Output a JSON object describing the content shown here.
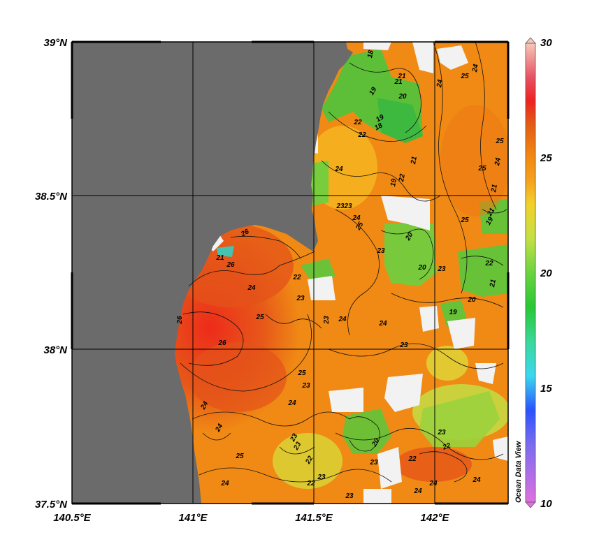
{
  "lat_labels": [
    "39°N",
    "38.5°N",
    "38°N",
    "37.5°N"
  ],
  "lon_labels": [
    "140.5°E",
    "141°E",
    "141.5°E",
    "142°E"
  ],
  "colorbar": {
    "ticks": [
      "30",
      "25",
      "20",
      "15",
      "10"
    ],
    "stops": [
      {
        "v": 10,
        "c": "#e070e0"
      },
      {
        "v": 12.5,
        "c": "#7a6cf0"
      },
      {
        "v": 14,
        "c": "#2a52ff"
      },
      {
        "v": 15.5,
        "c": "#3ad8f0"
      },
      {
        "v": 17,
        "c": "#3ad89a"
      },
      {
        "v": 18.5,
        "c": "#28c834"
      },
      {
        "v": 20,
        "c": "#6ad440"
      },
      {
        "v": 21.5,
        "c": "#c4e044"
      },
      {
        "v": 23,
        "c": "#f2d12a"
      },
      {
        "v": 24,
        "c": "#f5a21c"
      },
      {
        "v": 25,
        "c": "#f28a12"
      },
      {
        "v": 26.5,
        "c": "#e35a14"
      },
      {
        "v": 27.5,
        "c": "#ee2222"
      },
      {
        "v": 28.5,
        "c": "#e85060"
      },
      {
        "v": 30,
        "c": "#f6c8b8"
      }
    ]
  },
  "watermark": "Ocean Data View",
  "colors": {
    "land": "#6b6b6b",
    "missing": "#f2f2f2",
    "sea_base": "#f08a14"
  },
  "contour_labels": [
    "18",
    "21",
    "22",
    "24",
    "19",
    "20",
    "21",
    "19",
    "18",
    "22",
    "21",
    "22",
    "19",
    "23",
    "25",
    "25",
    "21",
    "19",
    "23",
    "24",
    "24",
    "23",
    "20",
    "20",
    "25",
    "21",
    "26",
    "21",
    "26",
    "26",
    "25",
    "24",
    "23",
    "22",
    "23",
    "24",
    "24",
    "23",
    "25",
    "19",
    "20",
    "26",
    "25",
    "24",
    "23",
    "24",
    "25",
    "21",
    "22",
    "24",
    "24",
    "25",
    "23",
    "24",
    "23",
    "22",
    "23",
    "24",
    "23",
    "22",
    "20",
    "23",
    "22",
    "23",
    "22",
    "24",
    "23",
    "24",
    "24"
  ]
}
